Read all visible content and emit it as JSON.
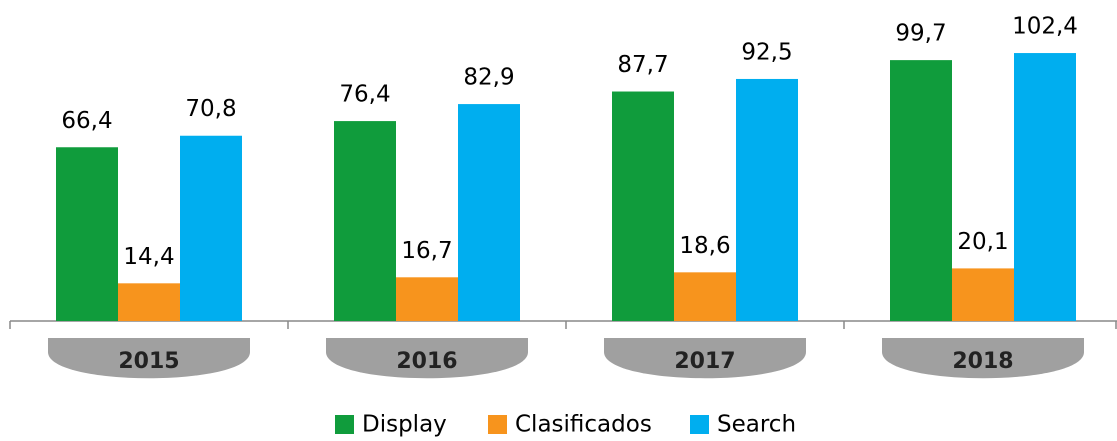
{
  "chart_data": {
    "type": "bar",
    "categories": [
      "2015",
      "2016",
      "2017",
      "2018"
    ],
    "series": [
      {
        "name": "Display",
        "color": "#109c3c",
        "values": [
          66.4,
          76.4,
          87.7,
          99.7
        ],
        "value_labels": [
          "66,4",
          "76,4",
          "87,7",
          "99,7"
        ]
      },
      {
        "name": "Clasificados",
        "color": "#f7941d",
        "values": [
          14.4,
          16.7,
          18.6,
          20.1
        ],
        "value_labels": [
          "14,4",
          "16,7",
          "18,6",
          "20,1"
        ]
      },
      {
        "name": "Search",
        "color": "#00aeef",
        "values": [
          70.8,
          82.9,
          92.5,
          102.4
        ],
        "value_labels": [
          "70,8",
          "82,9",
          "92,5",
          "102,4"
        ]
      }
    ],
    "ylim": [
      0,
      120
    ]
  }
}
